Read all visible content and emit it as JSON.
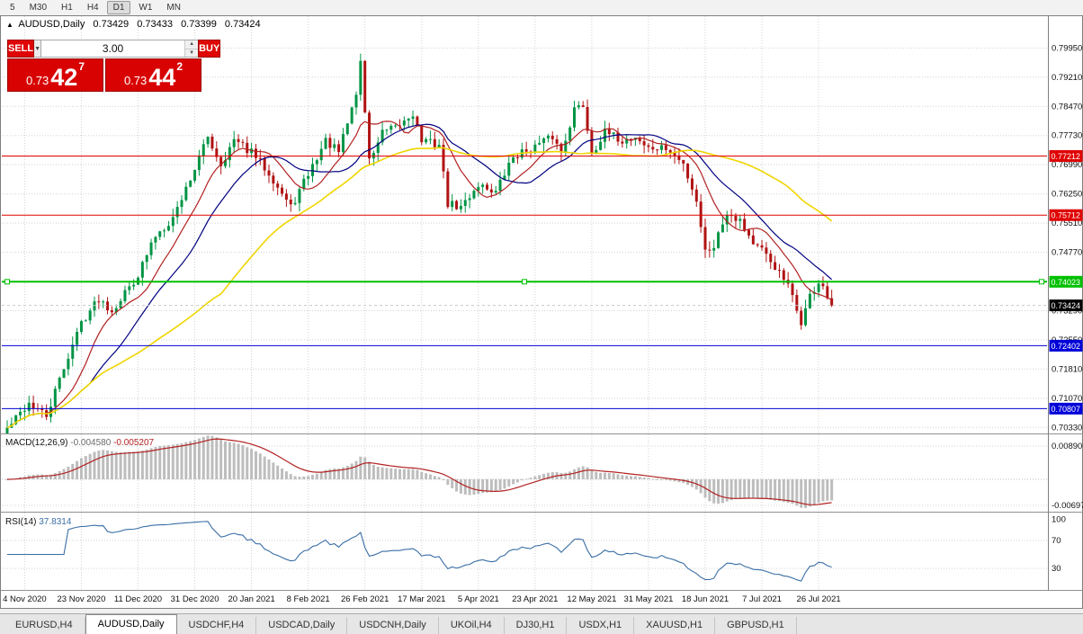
{
  "timeframe_toolbar": {
    "items": [
      "5",
      "M30",
      "H1",
      "H4",
      "D1",
      "W1",
      "MN"
    ],
    "active": "D1"
  },
  "chart_header": {
    "symbol": "AUDUSD,Daily",
    "open": "0.73429",
    "high": "0.73433",
    "low": "0.73399",
    "close": "0.73424"
  },
  "icons": {
    "dropdown_arrow": "▼",
    "spinner_up": "▲",
    "spinner_down": "▼",
    "symbol_triangle": "▲"
  },
  "trade_panel": {
    "sell_label": "SELL",
    "buy_label": "BUY",
    "volume": "3.00",
    "sell_price": {
      "prefix": "0.73",
      "big": "42",
      "sup": "7"
    },
    "buy_price": {
      "prefix": "0.73",
      "big": "44",
      "sup": "2"
    }
  },
  "tabs": {
    "items": [
      "EURUSD,H4",
      "AUDUSD,Daily",
      "USDCHF,H4",
      "USDCAD,Daily",
      "USDCNH,Daily",
      "UKOil,H4",
      "DJ30,H1",
      "USDX,H1",
      "XAUUSD,H1",
      "GBPUSD,H1"
    ],
    "active": "AUDUSD,Daily"
  },
  "chart_data": {
    "type": "candlestick",
    "symbol": "AUDUSD",
    "timeframe": "Daily",
    "price_axis_ticks": [
      "0.79950",
      "0.79210",
      "0.78470",
      "0.77730",
      "0.76990",
      "0.76250",
      "0.75510",
      "0.74770",
      "0.74030",
      "0.73290",
      "0.72550",
      "0.71810",
      "0.71070",
      "0.70330"
    ],
    "time_axis_ticks": [
      "4 Nov 2020",
      "23 Nov 2020",
      "11 Dec 2020",
      "31 Dec 2020",
      "20 Jan 2021",
      "8 Feb 2021",
      "26 Feb 2021",
      "17 Mar 2021",
      "5 Apr 2021",
      "23 Apr 2021",
      "12 May 2021",
      "31 May 2021",
      "18 Jun 2021",
      "7 Jul 2021",
      "26 Jul 2021"
    ],
    "bar_count": 190,
    "bars_per_tick": 13,
    "first_tick_bar": 4,
    "last_close": 0.73424,
    "noise": 0.0022,
    "close_anchors": [
      [
        0,
        0.703
      ],
      [
        5,
        0.7095
      ],
      [
        9,
        0.706
      ],
      [
        13,
        0.7185
      ],
      [
        17,
        0.73
      ],
      [
        21,
        0.736
      ],
      [
        24,
        0.733
      ],
      [
        30,
        0.742
      ],
      [
        34,
        0.752
      ],
      [
        38,
        0.7565
      ],
      [
        43,
        0.769
      ],
      [
        46,
        0.777
      ],
      [
        49,
        0.77
      ],
      [
        52,
        0.776
      ],
      [
        56,
        0.773
      ],
      [
        60,
        0.768
      ],
      [
        65,
        0.759
      ],
      [
        69,
        0.7675
      ],
      [
        73,
        0.776
      ],
      [
        76,
        0.773
      ],
      [
        80,
        0.788
      ],
      [
        81,
        0.796
      ],
      [
        83,
        0.771
      ],
      [
        86,
        0.778
      ],
      [
        89,
        0.779
      ],
      [
        93,
        0.783
      ],
      [
        95,
        0.776
      ],
      [
        99,
        0.775
      ],
      [
        101,
        0.76
      ],
      [
        104,
        0.759
      ],
      [
        108,
        0.765
      ],
      [
        112,
        0.763
      ],
      [
        116,
        0.772
      ],
      [
        121,
        0.7745
      ],
      [
        125,
        0.777
      ],
      [
        127,
        0.773
      ],
      [
        130,
        0.784
      ],
      [
        132,
        0.785
      ],
      [
        134,
        0.773
      ],
      [
        137,
        0.778
      ],
      [
        141,
        0.776
      ],
      [
        144,
        0.777
      ],
      [
        147,
        0.774
      ],
      [
        151,
        0.774
      ],
      [
        155,
        0.77
      ],
      [
        158,
        0.761
      ],
      [
        160,
        0.748
      ],
      [
        162,
        0.7495
      ],
      [
        165,
        0.758
      ],
      [
        168,
        0.756
      ],
      [
        171,
        0.75
      ],
      [
        173,
        0.748
      ],
      [
        176,
        0.744
      ],
      [
        179,
        0.739
      ],
      [
        182,
        0.73
      ],
      [
        184,
        0.7365
      ],
      [
        186,
        0.74
      ],
      [
        187,
        0.739
      ],
      [
        188,
        0.735
      ],
      [
        189,
        0.73424
      ]
    ],
    "horizontal_lines": [
      {
        "price": 0.77212,
        "label": "0.77212",
        "color": "#E00000",
        "width": 1,
        "selected": false
      },
      {
        "price": 0.75712,
        "label": "0.75712",
        "color": "#E00000",
        "width": 1,
        "selected": false
      },
      {
        "price": 0.74023,
        "label": "0.74023",
        "color": "#00C000",
        "width": 2,
        "selected": true
      },
      {
        "price": 0.72402,
        "label": "0.72402",
        "color": "#0000D8",
        "width": 1,
        "selected": false
      },
      {
        "price": 0.70807,
        "label": "0.70807",
        "color": "#0000D8",
        "width": 1,
        "selected": false
      }
    ],
    "bid_price": {
      "value": 0.73424,
      "label": "0.73424",
      "badge_color": "#000000"
    },
    "moving_averages": [
      {
        "period": 10,
        "color": "#B22222"
      },
      {
        "period": 20,
        "color": "#000080"
      },
      {
        "period": 50,
        "color": "#EFD500"
      }
    ],
    "candle_colors": {
      "up": "#009444",
      "down": "#B01212"
    },
    "macd": {
      "title": "MACD(12,26,9)",
      "value_main": "-0.004580",
      "value_signal": "-0.005207",
      "params": [
        12,
        26,
        9
      ],
      "axis_ticks": [
        "0.00890",
        "-0.00697"
      ],
      "axis_tick_values": [
        0.0089,
        -0.00697
      ],
      "histogram_color": "#BDBDBD",
      "signal_color": "#B22222"
    },
    "rsi": {
      "title": "RSI(14)",
      "value": "37.8314",
      "period": 14,
      "levels": [
        70,
        30
      ],
      "axis_ticks": [
        "100",
        "70",
        "30"
      ],
      "axis_tick_values": [
        100,
        70,
        30
      ],
      "line_color": "#3A6EA5"
    },
    "grid": true
  }
}
